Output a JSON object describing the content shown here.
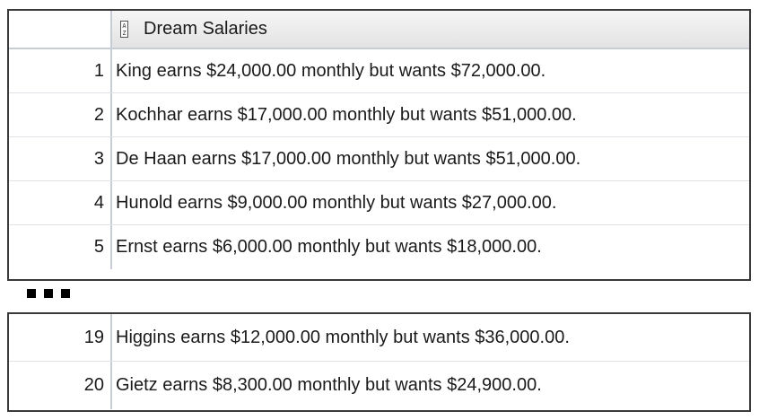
{
  "header": {
    "column_label": "Dream Salaries",
    "sort_icon_glyph_top": "A",
    "sort_icon_glyph_bottom": "Z"
  },
  "rows_top": [
    {
      "num": "1",
      "text": "King earns $24,000.00 monthly but wants $72,000.00."
    },
    {
      "num": "2",
      "text": "Kochhar earns $17,000.00 monthly but wants $51,000.00."
    },
    {
      "num": "3",
      "text": "De Haan earns $17,000.00 monthly but wants $51,000.00."
    },
    {
      "num": "4",
      "text": "Hunold earns $9,000.00 monthly but wants $27,000.00."
    },
    {
      "num": "5",
      "text": "Ernst earns $6,000.00 monthly but wants $18,000.00."
    }
  ],
  "rows_bottom": [
    {
      "num": "19",
      "text": "Higgins earns $12,000.00 monthly but wants $36,000.00."
    },
    {
      "num": "20",
      "text": "Gietz earns $8,300.00 monthly but wants $24,900.00."
    }
  ]
}
